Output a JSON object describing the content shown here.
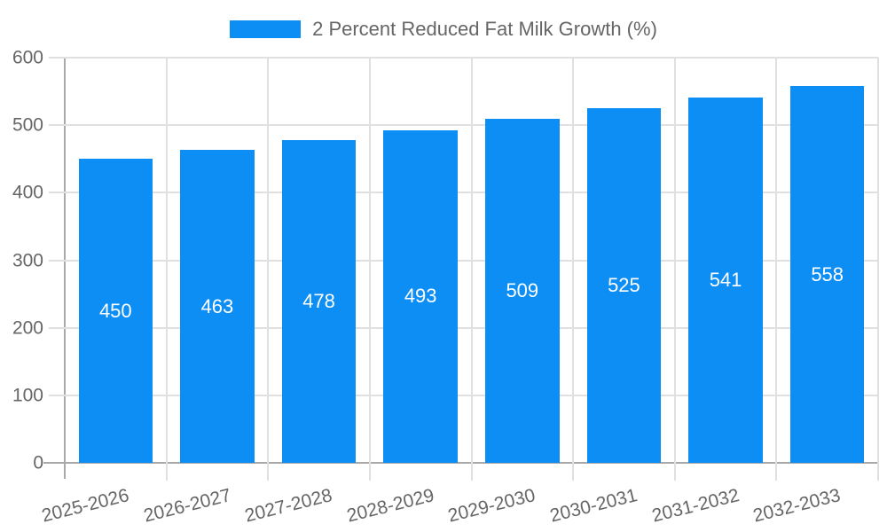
{
  "chart_data": {
    "type": "bar",
    "title": "2 Percent Reduced Fat Milk Growth (%)",
    "categories": [
      "2025-2026",
      "2026-2027",
      "2027-2028",
      "2028-2029",
      "2029-2030",
      "2030-2031",
      "2031-2032",
      "2032-2033"
    ],
    "values": [
      450,
      463,
      478,
      493,
      509,
      525,
      541,
      558
    ],
    "xlabel": "",
    "ylabel": "",
    "ylim": [
      0,
      600
    ],
    "yticks": [
      0,
      100,
      200,
      300,
      400,
      500,
      600
    ],
    "grid": true,
    "legend_position": "top-center",
    "value_label_position": "inside-center",
    "colors": {
      "bar": "#0d8ef4",
      "grid": "#e0e0e0",
      "axis": "#a9a9a9",
      "tick_text": "#666666",
      "value_label_text": "#ffffff"
    }
  },
  "legend": {
    "label": "2 Percent Reduced Fat Milk Growth (%)",
    "swatch_color": "#0d8ef4"
  }
}
